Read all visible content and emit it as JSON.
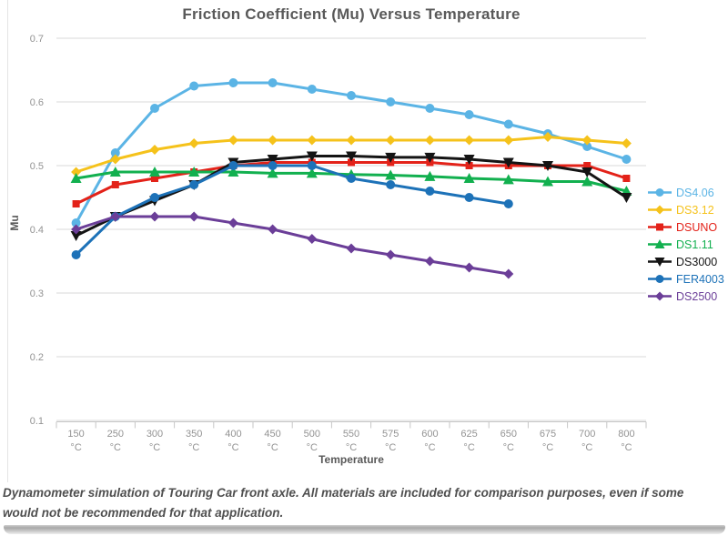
{
  "page": {
    "caption": "Dynamometer simulation of Touring Car front axle. All materials are included for comparison purposes, even if some would not be recommended for that application."
  },
  "colors": {
    "grid": "#d8d8d8",
    "axis_line": "#c6c6c6",
    "tick_label": "#939393",
    "title_text": "#595959",
    "caption_text": "#4f4f4f"
  },
  "chart_data": {
    "type": "line",
    "title": "Friction Coefficient (Mu) Versus Temperature",
    "xlabel": "Temperature",
    "ylabel": "Mu",
    "x_unit": "°C",
    "categories": [
      "150",
      "250",
      "300",
      "350",
      "400",
      "450",
      "500",
      "550",
      "575",
      "600",
      "625",
      "650",
      "675",
      "700",
      "800"
    ],
    "ylim": [
      0.1,
      0.7
    ],
    "y_ticks": [
      0.7,
      0.6,
      0.5,
      0.4,
      0.3,
      0.2,
      0.1
    ],
    "grid": "horizontal",
    "legend_position": "right",
    "series": [
      {
        "name": "DS4.06",
        "color": "#5bb4e5",
        "marker": "circle",
        "values": [
          0.41,
          0.52,
          0.59,
          0.625,
          0.63,
          0.63,
          0.62,
          0.61,
          0.6,
          0.59,
          0.58,
          0.565,
          0.55,
          0.53,
          0.51
        ]
      },
      {
        "name": "DS3.12",
        "color": "#f5c21b",
        "marker": "diamond",
        "values": [
          0.49,
          0.51,
          0.525,
          0.535,
          0.54,
          0.54,
          0.54,
          0.54,
          0.54,
          0.54,
          0.54,
          0.54,
          0.545,
          0.54,
          0.535
        ]
      },
      {
        "name": "DSUNO",
        "color": "#e32219",
        "marker": "square",
        "values": [
          0.44,
          0.47,
          0.48,
          0.49,
          0.5,
          0.505,
          0.505,
          0.505,
          0.505,
          0.505,
          0.5,
          0.5,
          0.5,
          0.5,
          0.48
        ]
      },
      {
        "name": "DS1.11",
        "color": "#12b04f",
        "marker": "triangle-up",
        "values": [
          0.48,
          0.49,
          0.49,
          0.49,
          0.49,
          0.488,
          0.488,
          0.486,
          0.485,
          0.483,
          0.48,
          0.478,
          0.475,
          0.475,
          0.46
        ]
      },
      {
        "name": "DS3000",
        "color": "#141414",
        "marker": "triangle-down",
        "values": [
          0.39,
          0.42,
          0.445,
          0.47,
          0.505,
          0.51,
          0.515,
          0.515,
          0.513,
          0.513,
          0.51,
          0.505,
          0.5,
          0.49,
          0.45
        ]
      },
      {
        "name": "FER4003",
        "color": "#1d72b8",
        "marker": "circle",
        "values": [
          0.36,
          0.42,
          0.45,
          0.47,
          0.5,
          0.5,
          0.5,
          0.48,
          0.47,
          0.46,
          0.45,
          0.44,
          null,
          null,
          null
        ]
      },
      {
        "name": "DS2500",
        "color": "#6b3e98",
        "marker": "diamond",
        "values": [
          0.4,
          0.42,
          0.42,
          0.42,
          0.41,
          0.4,
          0.385,
          0.37,
          0.36,
          0.35,
          0.34,
          0.33,
          null,
          null,
          null
        ]
      }
    ]
  }
}
